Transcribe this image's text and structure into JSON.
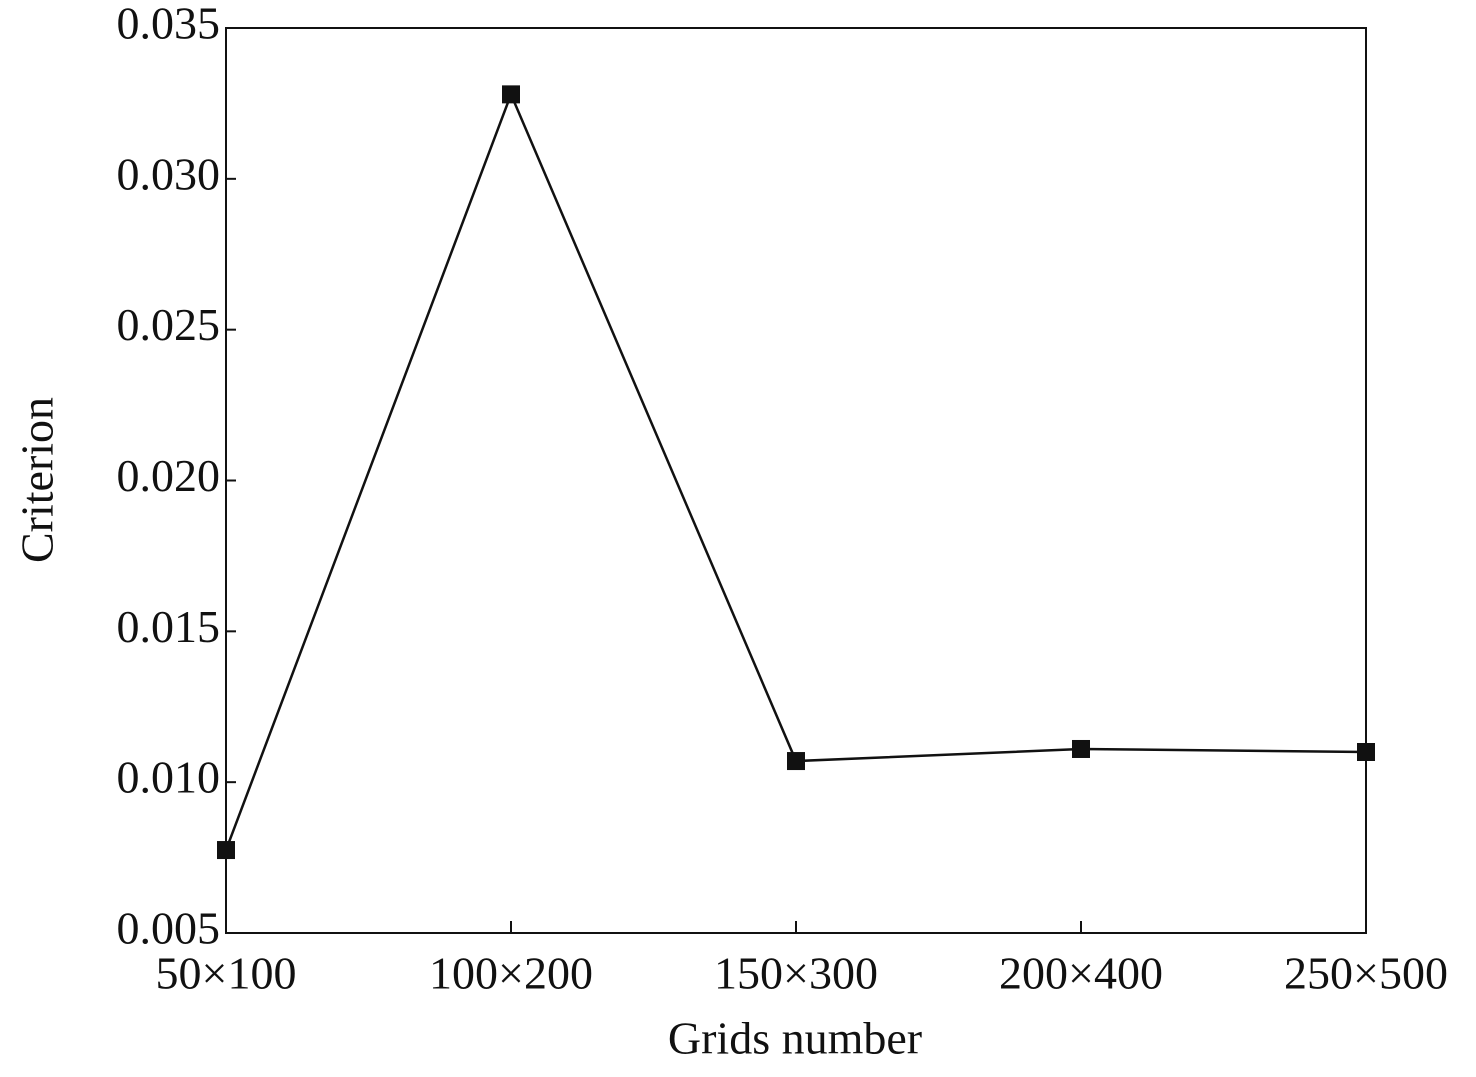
{
  "chart_data": {
    "type": "line",
    "xlabel": "Grids number",
    "ylabel": "Criterion",
    "categories": [
      "50×100",
      "100×200",
      "150×300",
      "200×400",
      "250×500"
    ],
    "values": [
      0.00775,
      0.0328,
      0.0107,
      0.0111,
      0.011
    ],
    "color": "#111111",
    "ylim": [
      0.005,
      0.035
    ],
    "yticks": [
      0.005,
      {
        "value": 0.01,
        "label": "0.010"
      },
      0.015,
      {
        "value": 0.02,
        "label": "0.020"
      },
      0.025,
      {
        "value": 0.03,
        "label": "0.030"
      },
      0.035
    ],
    "grid": false
  }
}
